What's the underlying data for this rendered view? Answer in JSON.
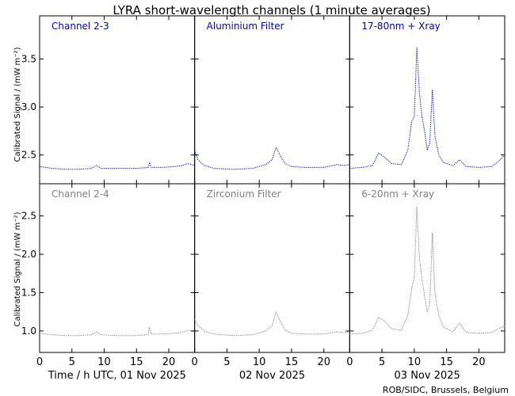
{
  "title": "LYRA short-wavelength channels (1 minute averages)",
  "ylabel": "Calibrated Signal / (mW m⁻²)",
  "credit": "ROB/SIDC, Brussels, Belgium",
  "colors": {
    "top": "#0000cc",
    "bottom": "#808080",
    "axis": "#000000"
  },
  "chart_data": {
    "type": "line",
    "x_unit": "hour UTC",
    "days": [
      {
        "label": "Time / h UTC, 01 Nov 2025"
      },
      {
        "label": "02 Nov 2025"
      },
      {
        "label": "03 Nov 2025"
      }
    ],
    "x_range": [
      0,
      24
    ],
    "x_ticks": [
      0,
      5,
      10,
      15,
      20
    ],
    "rows": [
      {
        "ylim": [
          2.2,
          3.95
        ],
        "y_ticks": [
          "2.5",
          "3.0",
          "3.5"
        ],
        "color": "#0000cc",
        "panels": [
          {
            "name": "Channel 2-3",
            "points": [
              [
                0,
                2.38
              ],
              [
                2,
                2.36
              ],
              [
                4,
                2.35
              ],
              [
                6,
                2.35
              ],
              [
                8,
                2.36
              ],
              [
                8.8,
                2.39
              ],
              [
                9.5,
                2.36
              ],
              [
                12,
                2.36
              ],
              [
                15,
                2.36
              ],
              [
                16.8,
                2.37
              ],
              [
                17,
                2.42
              ],
              [
                17.3,
                2.37
              ],
              [
                19,
                2.37
              ],
              [
                21,
                2.38
              ],
              [
                22,
                2.39
              ],
              [
                23,
                2.41
              ],
              [
                24,
                2.39
              ]
            ]
          },
          {
            "name": "Aluminium Filter",
            "points": [
              [
                0,
                2.55
              ],
              [
                0.5,
                2.45
              ],
              [
                1.5,
                2.39
              ],
              [
                3,
                2.36
              ],
              [
                6,
                2.35
              ],
              [
                9,
                2.36
              ],
              [
                11,
                2.4
              ],
              [
                12,
                2.45
              ],
              [
                12.6,
                2.58
              ],
              [
                13.2,
                2.5
              ],
              [
                14,
                2.41
              ],
              [
                15,
                2.38
              ],
              [
                17,
                2.37
              ],
              [
                20,
                2.37
              ],
              [
                22,
                2.4
              ],
              [
                23,
                2.39
              ],
              [
                24,
                2.4
              ]
            ]
          },
          {
            "name": "17-80nm + Xray",
            "points": [
              [
                0,
                2.36
              ],
              [
                2,
                2.37
              ],
              [
                3.5,
                2.39
              ],
              [
                4.5,
                2.52
              ],
              [
                5.5,
                2.47
              ],
              [
                6.5,
                2.41
              ],
              [
                8,
                2.4
              ],
              [
                9,
                2.55
              ],
              [
                9.6,
                2.85
              ],
              [
                10,
                2.9
              ],
              [
                10.4,
                3.62
              ],
              [
                10.8,
                3.15
              ],
              [
                11.2,
                2.9
              ],
              [
                11.6,
                2.75
              ],
              [
                12,
                2.55
              ],
              [
                12.4,
                2.62
              ],
              [
                12.8,
                3.18
              ],
              [
                13.2,
                2.7
              ],
              [
                13.8,
                2.5
              ],
              [
                14.5,
                2.42
              ],
              [
                16,
                2.39
              ],
              [
                17,
                2.45
              ],
              [
                18,
                2.38
              ],
              [
                20,
                2.37
              ],
              [
                22,
                2.38
              ],
              [
                23,
                2.43
              ],
              [
                24,
                2.5
              ]
            ]
          }
        ]
      },
      {
        "ylim": [
          0.72,
          2.92
        ],
        "y_ticks": [
          "1.0",
          "1.5",
          "2.0",
          "2.5"
        ],
        "color": "#808080",
        "panels": [
          {
            "name": "Channel 2-4",
            "points": [
              [
                0,
                0.97
              ],
              [
                2,
                0.95
              ],
              [
                4,
                0.94
              ],
              [
                6,
                0.94
              ],
              [
                8,
                0.95
              ],
              [
                8.8,
                0.99
              ],
              [
                9.5,
                0.95
              ],
              [
                12,
                0.94
              ],
              [
                15,
                0.94
              ],
              [
                16.8,
                0.95
              ],
              [
                17,
                1.05
              ],
              [
                17.3,
                0.96
              ],
              [
                19,
                0.96
              ],
              [
                21,
                0.97
              ],
              [
                22,
                0.98
              ],
              [
                23,
                1.01
              ],
              [
                24,
                0.99
              ]
            ]
          },
          {
            "name": "Zirconium Filter",
            "points": [
              [
                0,
                1.15
              ],
              [
                0.5,
                1.07
              ],
              [
                1.5,
                1.0
              ],
              [
                3,
                0.96
              ],
              [
                6,
                0.94
              ],
              [
                9,
                0.95
              ],
              [
                11,
                1.0
              ],
              [
                12,
                1.07
              ],
              [
                12.6,
                1.24
              ],
              [
                13.2,
                1.14
              ],
              [
                14,
                1.01
              ],
              [
                15,
                0.97
              ],
              [
                17,
                0.96
              ],
              [
                20,
                0.96
              ],
              [
                22,
                0.99
              ],
              [
                23,
                0.98
              ],
              [
                24,
                0.99
              ]
            ]
          },
          {
            "name": "6-20nm + Xray",
            "points": [
              [
                0,
                0.96
              ],
              [
                2,
                0.97
              ],
              [
                3.5,
                1.01
              ],
              [
                4.5,
                1.18
              ],
              [
                5.5,
                1.12
              ],
              [
                6.5,
                1.03
              ],
              [
                8,
                1.01
              ],
              [
                9,
                1.2
              ],
              [
                9.6,
                1.55
              ],
              [
                10,
                1.7
              ],
              [
                10.4,
                2.62
              ],
              [
                10.8,
                1.95
              ],
              [
                11.2,
                1.68
              ],
              [
                11.6,
                1.45
              ],
              [
                12,
                1.25
              ],
              [
                12.4,
                1.35
              ],
              [
                12.8,
                2.28
              ],
              [
                13.2,
                1.5
              ],
              [
                13.8,
                1.2
              ],
              [
                14.5,
                1.05
              ],
              [
                16,
                0.99
              ],
              [
                17,
                1.1
              ],
              [
                18,
                0.98
              ],
              [
                20,
                0.97
              ],
              [
                22,
                0.98
              ],
              [
                23,
                1.03
              ],
              [
                24,
                1.06
              ]
            ]
          }
        ]
      }
    ]
  }
}
